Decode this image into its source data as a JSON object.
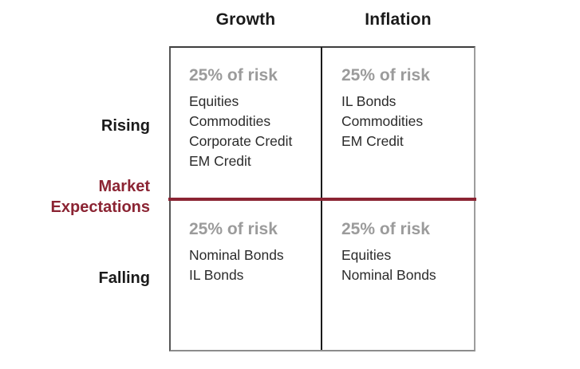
{
  "figure": {
    "title_semantic": "risk-allocation-matrix",
    "column_headers": [
      "Growth",
      "Inflation"
    ],
    "row_labels": {
      "rising": "Rising",
      "falling": "Falling"
    },
    "axis_label": "Market Expectations",
    "quadrants": [
      {
        "name": "rising-growth",
        "risk_share": "25% of risk",
        "assets": [
          "Equities",
          "Commodities",
          "Corporate Credit",
          "EM Credit"
        ]
      },
      {
        "name": "rising-inflation",
        "risk_share": "25% of risk",
        "assets": [
          "IL Bonds",
          "Commodities",
          "EM Credit"
        ]
      },
      {
        "name": "falling-growth",
        "risk_share": "25% of risk",
        "assets": [
          "Nominal Bonds",
          "IL Bonds"
        ]
      },
      {
        "name": "falling-inflation",
        "risk_share": "25% of risk",
        "assets": [
          "Equities",
          "Nominal Bonds"
        ]
      }
    ],
    "colors": {
      "maroon_accent": "#8b2433",
      "risk_gray": "#9b9b9b",
      "text_black": "#1a1a1a",
      "border_gray": "#8c8c8c"
    }
  }
}
